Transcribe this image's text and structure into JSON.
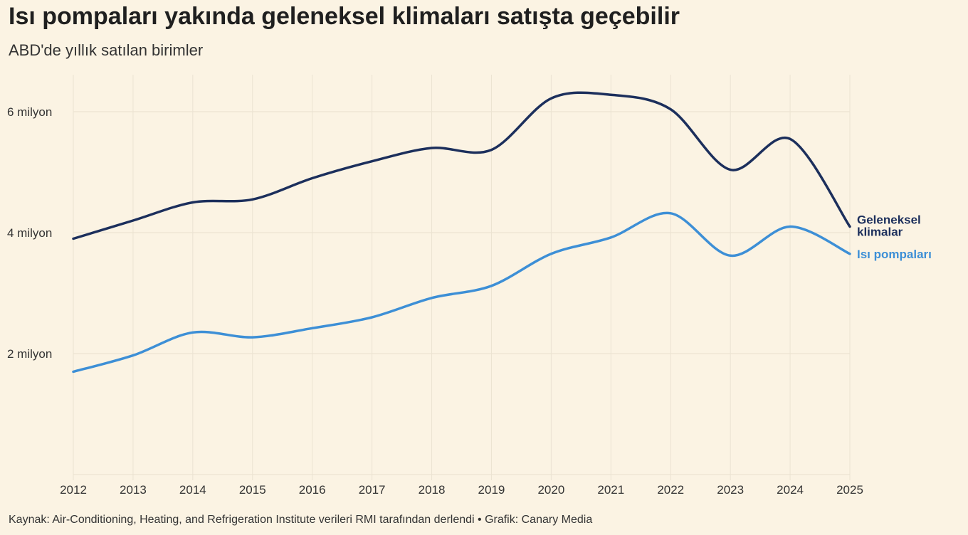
{
  "header": {
    "title": "Isı pompaları yakında geleneksel klimaları satışta geçebilir",
    "subtitle": "ABD'de yıllık satılan birimler"
  },
  "footer": {
    "source": "Kaynak: Air-Conditioning, Heating, and Refrigeration Institute verileri RMI tarafından derlendi • Grafik: Canary Media"
  },
  "chart_data": {
    "type": "line",
    "title": "Isı pompaları yakında geleneksel klimaları satışta geçebilir",
    "subtitle": "ABD'de yıllık satılan birimler",
    "x": [
      2012,
      2013,
      2014,
      2015,
      2016,
      2017,
      2018,
      2019,
      2020,
      2021,
      2022,
      2023,
      2024,
      2025
    ],
    "x_tick_labels": [
      "2012",
      "2013",
      "2014",
      "2015",
      "2016",
      "2017",
      "2018",
      "2019",
      "2020",
      "2021",
      "2022",
      "2023",
      "2024",
      "2025"
    ],
    "y_ticks": [
      2000000,
      4000000,
      6000000
    ],
    "y_tick_labels": [
      "2 milyon",
      "4 milyon",
      "6 milyon"
    ],
    "ylim": [
      0,
      6500000
    ],
    "grid": true,
    "legend": "direct labels at line ends (right)",
    "series": [
      {
        "name": "Geleneksel klimalar",
        "label_lines": [
          "Geleneksel",
          "klimalar"
        ],
        "color": "#1c2f5c",
        "values": [
          3900000,
          4200000,
          4500000,
          4550000,
          4900000,
          5180000,
          5400000,
          5370000,
          6220000,
          6280000,
          6040000,
          5040000,
          5550000,
          4100000
        ]
      },
      {
        "name": "Isı pompaları",
        "label_lines": [
          "Isı pompaları"
        ],
        "color": "#3d8fd6",
        "values": [
          1700000,
          1970000,
          2350000,
          2270000,
          2420000,
          2600000,
          2920000,
          3120000,
          3650000,
          3920000,
          4320000,
          3620000,
          4100000,
          3650000
        ]
      }
    ]
  }
}
